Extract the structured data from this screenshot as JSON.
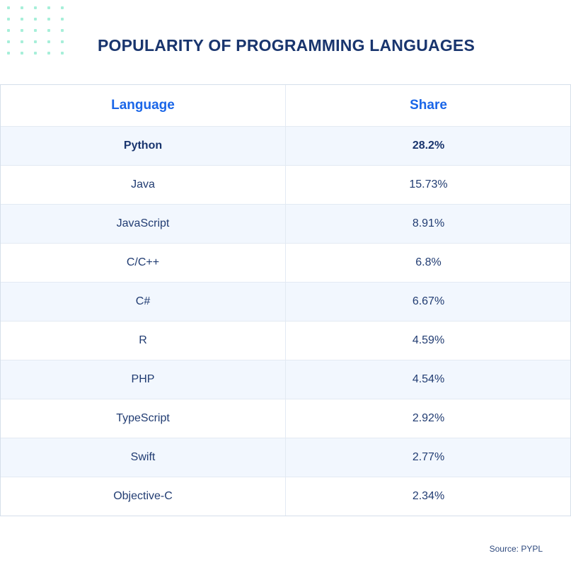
{
  "title": "POPULARITY OF PROGRAMMING LANGUAGES",
  "decoration": {
    "dot_grid": {
      "rows": 5,
      "cols": 5,
      "color": "#a7efd9"
    }
  },
  "table": {
    "headers": {
      "language": "Language",
      "share": "Share"
    },
    "rows": [
      {
        "language": "Python",
        "share": "28.2%",
        "highlight": true
      },
      {
        "language": "Java",
        "share": "15.73%"
      },
      {
        "language": "JavaScript",
        "share": "8.91%"
      },
      {
        "language": "C/C++",
        "share": "6.8%"
      },
      {
        "language": "C#",
        "share": "6.67%"
      },
      {
        "language": "R",
        "share": "4.59%"
      },
      {
        "language": "PHP",
        "share": "4.54%"
      },
      {
        "language": "TypeScript",
        "share": "2.92%"
      },
      {
        "language": "Swift",
        "share": "2.77%"
      },
      {
        "language": "Objective-C",
        "share": "2.34%"
      }
    ]
  },
  "source": "Source: PYPL",
  "colors": {
    "title": "#19356e",
    "header_text": "#1a66e8",
    "body_text": "#213c72",
    "row_tint": "#f2f7fe",
    "border": "#d5dfea"
  }
}
